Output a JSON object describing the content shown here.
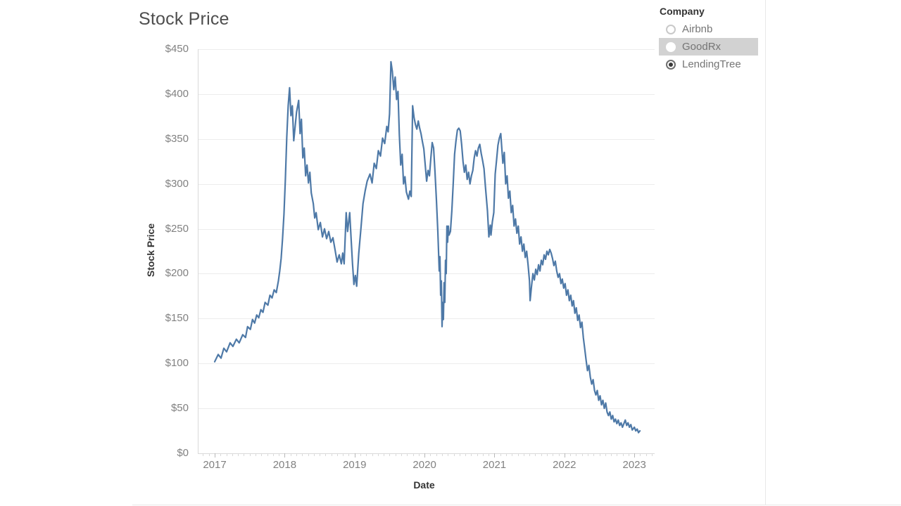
{
  "page": {
    "title": "Stock Price"
  },
  "axes": {
    "y_title": "Stock Price",
    "x_title": "Date"
  },
  "legend": {
    "title": "Company",
    "items": [
      {
        "label": "Airbnb",
        "selected": false,
        "highlighted": false
      },
      {
        "label": "GoodRx",
        "selected": false,
        "highlighted": true
      },
      {
        "label": "LendingTree",
        "selected": true,
        "highlighted": false
      }
    ]
  },
  "colors": {
    "line": "#4e79a7",
    "grid": "#ececec",
    "axis": "#d9d9d9",
    "major_tick": "#b9b9b9",
    "tick_label": "#818181",
    "title": "#4e4e4e",
    "axis_title": "#333333",
    "legend_text": "#757575",
    "highlight": "#d2d2d2"
  },
  "chart_data": {
    "type": "line",
    "title": "Stock Price",
    "xlabel": "Date",
    "ylabel": "Stock Price",
    "x_domain": [
      2016.758,
      2023.29
    ],
    "y_domain": [
      0,
      450
    ],
    "grid": "horizontal",
    "legend_position": "top-right",
    "x_ticks": [
      {
        "value": 2017,
        "label": "2017"
      },
      {
        "value": 2018,
        "label": "2018"
      },
      {
        "value": 2019,
        "label": "2019"
      },
      {
        "value": 2020,
        "label": "2020"
      },
      {
        "value": 2021,
        "label": "2021"
      },
      {
        "value": 2022,
        "label": "2022"
      },
      {
        "value": 2023,
        "label": "2023"
      }
    ],
    "y_ticks": [
      {
        "value": 0,
        "label": "$0"
      },
      {
        "value": 50,
        "label": "$50"
      },
      {
        "value": 100,
        "label": "$100"
      },
      {
        "value": 150,
        "label": "$150"
      },
      {
        "value": 200,
        "label": "$200"
      },
      {
        "value": 250,
        "label": "$250"
      },
      {
        "value": 300,
        "label": "$300"
      },
      {
        "value": 350,
        "label": "$350"
      },
      {
        "value": 400,
        "label": "$400"
      },
      {
        "value": 450,
        "label": "$450"
      }
    ],
    "series": [
      {
        "name": "LendingTree",
        "color": "#4e79a7",
        "points": [
          [
            2017.0,
            102
          ],
          [
            2017.05,
            110
          ],
          [
            2017.09,
            106
          ],
          [
            2017.13,
            117
          ],
          [
            2017.17,
            113
          ],
          [
            2017.22,
            123
          ],
          [
            2017.26,
            119
          ],
          [
            2017.31,
            127
          ],
          [
            2017.35,
            123
          ],
          [
            2017.4,
            132
          ],
          [
            2017.44,
            129
          ],
          [
            2017.47,
            141
          ],
          [
            2017.51,
            138
          ],
          [
            2017.54,
            149
          ],
          [
            2017.57,
            145
          ],
          [
            2017.6,
            154
          ],
          [
            2017.63,
            151
          ],
          [
            2017.66,
            160
          ],
          [
            2017.69,
            157
          ],
          [
            2017.72,
            168
          ],
          [
            2017.76,
            165
          ],
          [
            2017.79,
            176
          ],
          [
            2017.82,
            173
          ],
          [
            2017.85,
            182
          ],
          [
            2017.88,
            179
          ],
          [
            2017.91,
            192
          ],
          [
            2017.93,
            203
          ],
          [
            2017.95,
            217
          ],
          [
            2017.97,
            239
          ],
          [
            2017.99,
            266
          ],
          [
            2018.01,
            305
          ],
          [
            2018.03,
            352
          ],
          [
            2018.05,
            387
          ],
          [
            2018.07,
            407
          ],
          [
            2018.09,
            376
          ],
          [
            2018.11,
            387
          ],
          [
            2018.13,
            348
          ],
          [
            2018.15,
            364
          ],
          [
            2018.17,
            380
          ],
          [
            2018.2,
            393
          ],
          [
            2018.22,
            356
          ],
          [
            2018.24,
            372
          ],
          [
            2018.26,
            329
          ],
          [
            2018.28,
            340
          ],
          [
            2018.3,
            309
          ],
          [
            2018.32,
            321
          ],
          [
            2018.34,
            301
          ],
          [
            2018.36,
            313
          ],
          [
            2018.38,
            290
          ],
          [
            2018.41,
            278
          ],
          [
            2018.43,
            262
          ],
          [
            2018.45,
            268
          ],
          [
            2018.48,
            249
          ],
          [
            2018.51,
            257
          ],
          [
            2018.54,
            241
          ],
          [
            2018.57,
            250
          ],
          [
            2018.6,
            239
          ],
          [
            2018.63,
            247
          ],
          [
            2018.66,
            235
          ],
          [
            2018.69,
            240
          ],
          [
            2018.72,
            227
          ],
          [
            2018.75,
            213
          ],
          [
            2018.78,
            221
          ],
          [
            2018.81,
            211
          ],
          [
            2018.83,
            223
          ],
          [
            2018.85,
            211
          ],
          [
            2018.88,
            268
          ],
          [
            2018.9,
            247
          ],
          [
            2018.93,
            268
          ],
          [
            2018.95,
            239
          ],
          [
            2018.97,
            211
          ],
          [
            2018.99,
            188
          ],
          [
            2019.01,
            198
          ],
          [
            2019.03,
            186
          ],
          [
            2019.06,
            223
          ],
          [
            2019.09,
            250
          ],
          [
            2019.12,
            278
          ],
          [
            2019.15,
            292
          ],
          [
            2019.18,
            303
          ],
          [
            2019.22,
            311
          ],
          [
            2019.25,
            301
          ],
          [
            2019.28,
            323
          ],
          [
            2019.31,
            317
          ],
          [
            2019.34,
            337
          ],
          [
            2019.37,
            331
          ],
          [
            2019.4,
            351
          ],
          [
            2019.43,
            345
          ],
          [
            2019.46,
            364
          ],
          [
            2019.48,
            358
          ],
          [
            2019.5,
            378
          ],
          [
            2019.52,
            436
          ],
          [
            2019.54,
            425
          ],
          [
            2019.56,
            405
          ],
          [
            2019.58,
            419
          ],
          [
            2019.6,
            394
          ],
          [
            2019.62,
            403
          ],
          [
            2019.64,
            355
          ],
          [
            2019.66,
            321
          ],
          [
            2019.68,
            333
          ],
          [
            2019.7,
            300
          ],
          [
            2019.72,
            308
          ],
          [
            2019.74,
            291
          ],
          [
            2019.77,
            283
          ],
          [
            2019.79,
            292
          ],
          [
            2019.81,
            286
          ],
          [
            2019.83,
            387
          ],
          [
            2019.85,
            374
          ],
          [
            2019.87,
            366
          ],
          [
            2019.89,
            361
          ],
          [
            2019.91,
            370
          ],
          [
            2019.93,
            362
          ],
          [
            2019.95,
            356
          ],
          [
            2019.97,
            347
          ],
          [
            2019.99,
            339
          ],
          [
            2020.01,
            321
          ],
          [
            2020.03,
            303
          ],
          [
            2020.05,
            315
          ],
          [
            2020.07,
            309
          ],
          [
            2020.09,
            329
          ],
          [
            2020.11,
            346
          ],
          [
            2020.13,
            340
          ],
          [
            2020.15,
            313
          ],
          [
            2020.17,
            282
          ],
          [
            2020.19,
            247
          ],
          [
            2020.21,
            203
          ],
          [
            2020.22,
            219
          ],
          [
            2020.23,
            176
          ],
          [
            2020.24,
            192
          ],
          [
            2020.25,
            141
          ],
          [
            2020.26,
            168
          ],
          [
            2020.27,
            149
          ],
          [
            2020.28,
            190
          ],
          [
            2020.29,
            168
          ],
          [
            2020.3,
            215
          ],
          [
            2020.31,
            200
          ],
          [
            2020.32,
            253
          ],
          [
            2020.33,
            235
          ],
          [
            2020.34,
            253
          ],
          [
            2020.35,
            243
          ],
          [
            2020.37,
            247
          ],
          [
            2020.39,
            270
          ],
          [
            2020.41,
            301
          ],
          [
            2020.43,
            333
          ],
          [
            2020.45,
            348
          ],
          [
            2020.47,
            360
          ],
          [
            2020.49,
            362
          ],
          [
            2020.51,
            359
          ],
          [
            2020.53,
            344
          ],
          [
            2020.55,
            325
          ],
          [
            2020.57,
            313
          ],
          [
            2020.59,
            321
          ],
          [
            2020.61,
            305
          ],
          [
            2020.63,
            313
          ],
          [
            2020.65,
            300
          ],
          [
            2020.67,
            309
          ],
          [
            2020.69,
            315
          ],
          [
            2020.71,
            329
          ],
          [
            2020.73,
            337
          ],
          [
            2020.75,
            331
          ],
          [
            2020.77,
            340
          ],
          [
            2020.79,
            344
          ],
          [
            2020.81,
            334
          ],
          [
            2020.83,
            326
          ],
          [
            2020.85,
            317
          ],
          [
            2020.87,
            297
          ],
          [
            2020.9,
            270
          ],
          [
            2020.92,
            241
          ],
          [
            2020.94,
            254
          ],
          [
            2020.95,
            243
          ],
          [
            2020.97,
            258
          ],
          [
            2020.99,
            268
          ],
          [
            2021.01,
            311
          ],
          [
            2021.03,
            327
          ],
          [
            2021.05,
            343
          ],
          [
            2021.07,
            351
          ],
          [
            2021.09,
            356
          ],
          [
            2021.12,
            323
          ],
          [
            2021.14,
            335
          ],
          [
            2021.16,
            300
          ],
          [
            2021.18,
            309
          ],
          [
            2021.2,
            284
          ],
          [
            2021.22,
            292
          ],
          [
            2021.24,
            268
          ],
          [
            2021.26,
            276
          ],
          [
            2021.28,
            253
          ],
          [
            2021.3,
            261
          ],
          [
            2021.32,
            245
          ],
          [
            2021.34,
            253
          ],
          [
            2021.36,
            233
          ],
          [
            2021.38,
            241
          ],
          [
            2021.4,
            225
          ],
          [
            2021.42,
            233
          ],
          [
            2021.44,
            218
          ],
          [
            2021.46,
            225
          ],
          [
            2021.48,
            210
          ],
          [
            2021.5,
            192
          ],
          [
            2021.51,
            170
          ],
          [
            2021.53,
            186
          ],
          [
            2021.55,
            200
          ],
          [
            2021.57,
            193
          ],
          [
            2021.59,
            205
          ],
          [
            2021.61,
            199
          ],
          [
            2021.63,
            210
          ],
          [
            2021.65,
            203
          ],
          [
            2021.67,
            215
          ],
          [
            2021.69,
            210
          ],
          [
            2021.71,
            221
          ],
          [
            2021.73,
            216
          ],
          [
            2021.75,
            225
          ],
          [
            2021.77,
            221
          ],
          [
            2021.79,
            227
          ],
          [
            2021.81,
            223
          ],
          [
            2021.83,
            217
          ],
          [
            2021.85,
            209
          ],
          [
            2021.87,
            214
          ],
          [
            2021.89,
            203
          ],
          [
            2021.91,
            196
          ],
          [
            2021.93,
            200
          ],
          [
            2021.95,
            189
          ],
          [
            2021.97,
            194
          ],
          [
            2021.99,
            184
          ],
          [
            2022.01,
            189
          ],
          [
            2022.03,
            176
          ],
          [
            2022.05,
            182
          ],
          [
            2022.07,
            170
          ],
          [
            2022.09,
            176
          ],
          [
            2022.11,
            164
          ],
          [
            2022.13,
            170
          ],
          [
            2022.15,
            156
          ],
          [
            2022.17,
            162
          ],
          [
            2022.19,
            148
          ],
          [
            2022.21,
            154
          ],
          [
            2022.23,
            140
          ],
          [
            2022.25,
            146
          ],
          [
            2022.27,
            129
          ],
          [
            2022.29,
            117
          ],
          [
            2022.31,
            104
          ],
          [
            2022.33,
            92
          ],
          [
            2022.35,
            98
          ],
          [
            2022.37,
            85
          ],
          [
            2022.39,
            77
          ],
          [
            2022.41,
            82
          ],
          [
            2022.43,
            70
          ],
          [
            2022.45,
            65
          ],
          [
            2022.47,
            70
          ],
          [
            2022.49,
            59
          ],
          [
            2022.51,
            64
          ],
          [
            2022.53,
            54
          ],
          [
            2022.55,
            59
          ],
          [
            2022.57,
            50
          ],
          [
            2022.59,
            56
          ],
          [
            2022.61,
            46
          ],
          [
            2022.63,
            42
          ],
          [
            2022.65,
            46
          ],
          [
            2022.67,
            38
          ],
          [
            2022.69,
            42
          ],
          [
            2022.71,
            35
          ],
          [
            2022.73,
            38
          ],
          [
            2022.75,
            33
          ],
          [
            2022.77,
            37
          ],
          [
            2022.79,
            31
          ],
          [
            2022.81,
            34
          ],
          [
            2022.83,
            29
          ],
          [
            2022.85,
            33
          ],
          [
            2022.87,
            37
          ],
          [
            2022.89,
            31
          ],
          [
            2022.91,
            34
          ],
          [
            2022.93,
            29
          ],
          [
            2022.95,
            32
          ],
          [
            2022.97,
            26
          ],
          [
            2023.0,
            29
          ],
          [
            2023.02,
            25
          ],
          [
            2023.04,
            27
          ],
          [
            2023.06,
            23
          ],
          [
            2023.08,
            25
          ]
        ]
      }
    ]
  }
}
